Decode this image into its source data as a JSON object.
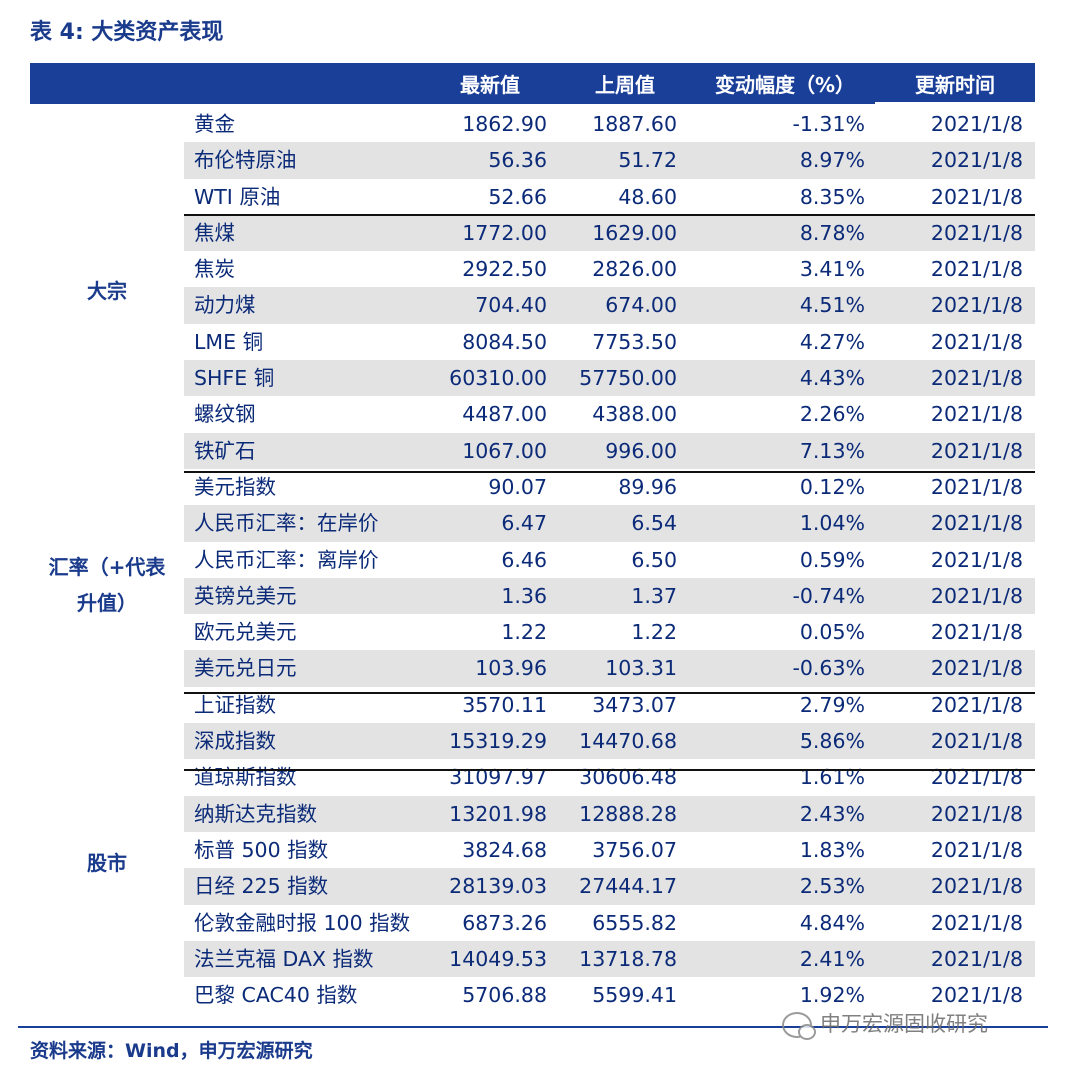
{
  "title": "表 4:  大类资产表现",
  "columns": [
    "最新值",
    "上周值",
    "变动幅度（%）",
    "更新时间"
  ],
  "groups": [
    {
      "label": "大宗"
    },
    {
      "label": "汇率（+代表\n升值）"
    },
    {
      "label": "股市"
    }
  ],
  "rows": [
    {
      "name": "黄金",
      "latest": "1862.90",
      "prev": "1887.60",
      "change": "-1.31%",
      "date": "2021/1/8"
    },
    {
      "name": "布伦特原油",
      "latest": "56.36",
      "prev": "51.72",
      "change": "8.97%",
      "date": "2021/1/8"
    },
    {
      "name": "WTI 原油",
      "latest": "52.66",
      "prev": "48.60",
      "change": "8.35%",
      "date": "2021/1/8"
    },
    {
      "name": "焦煤",
      "latest": "1772.00",
      "prev": "1629.00",
      "change": "8.78%",
      "date": "2021/1/8"
    },
    {
      "name": "焦炭",
      "latest": "2922.50",
      "prev": "2826.00",
      "change": "3.41%",
      "date": "2021/1/8"
    },
    {
      "name": "动力煤",
      "latest": "704.40",
      "prev": "674.00",
      "change": "4.51%",
      "date": "2021/1/8"
    },
    {
      "name": "LME 铜",
      "latest": "8084.50",
      "prev": "7753.50",
      "change": "4.27%",
      "date": "2021/1/8"
    },
    {
      "name": "SHFE 铜",
      "latest": "60310.00",
      "prev": "57750.00",
      "change": "4.43%",
      "date": "2021/1/8"
    },
    {
      "name": "螺纹钢",
      "latest": "4487.00",
      "prev": "4388.00",
      "change": "2.26%",
      "date": "2021/1/8"
    },
    {
      "name": "铁矿石",
      "latest": "1067.00",
      "prev": "996.00",
      "change": "7.13%",
      "date": "2021/1/8"
    },
    {
      "name": "美元指数",
      "latest": "90.07",
      "prev": "89.96",
      "change": "0.12%",
      "date": "2021/1/8"
    },
    {
      "name": "人民币汇率：在岸价",
      "latest": "6.47",
      "prev": "6.54",
      "change": "1.04%",
      "date": "2021/1/8"
    },
    {
      "name": "人民币汇率：离岸价",
      "latest": "6.46",
      "prev": "6.50",
      "change": "0.59%",
      "date": "2021/1/8"
    },
    {
      "name": "英镑兑美元",
      "latest": "1.36",
      "prev": "1.37",
      "change": "-0.74%",
      "date": "2021/1/8"
    },
    {
      "name": "欧元兑美元",
      "latest": "1.22",
      "prev": "1.22",
      "change": "0.05%",
      "date": "2021/1/8"
    },
    {
      "name": "美元兑日元",
      "latest": "103.96",
      "prev": "103.31",
      "change": "-0.63%",
      "date": "2021/1/8"
    },
    {
      "name": "上证指数",
      "latest": "3570.11",
      "prev": "3473.07",
      "change": "2.79%",
      "date": "2021/1/8"
    },
    {
      "name": "深成指数",
      "latest": "15319.29",
      "prev": "14470.68",
      "change": "5.86%",
      "date": "2021/1/8"
    },
    {
      "name": "道琼斯指数",
      "latest": "31097.97",
      "prev": "30606.48",
      "change": "1.61%",
      "date": "2021/1/8"
    },
    {
      "name": "纳斯达克指数",
      "latest": "13201.98",
      "prev": "12888.28",
      "change": "2.43%",
      "date": "2021/1/8"
    },
    {
      "name": "标普 500 指数",
      "latest": "3824.68",
      "prev": "3756.07",
      "change": "1.83%",
      "date": "2021/1/8"
    },
    {
      "name": "日经 225 指数",
      "latest": "28139.03",
      "prev": "27444.17",
      "change": "2.53%",
      "date": "2021/1/8"
    },
    {
      "name": "伦敦金融时报 100 指数",
      "latest": "6873.26",
      "prev": "6555.82",
      "change": "4.84%",
      "date": "2021/1/8"
    },
    {
      "name": "法兰克福 DAX 指数",
      "latest": "14049.53",
      "prev": "13718.78",
      "change": "2.41%",
      "date": "2021/1/8"
    },
    {
      "name": "巴黎 CAC40 指数",
      "latest": "5706.88",
      "prev": "5599.41",
      "change": "1.92%",
      "date": "2021/1/8"
    }
  ],
  "source": "资料来源：Wind，申万宏源研究",
  "watermark": "申万宏源固收研究"
}
